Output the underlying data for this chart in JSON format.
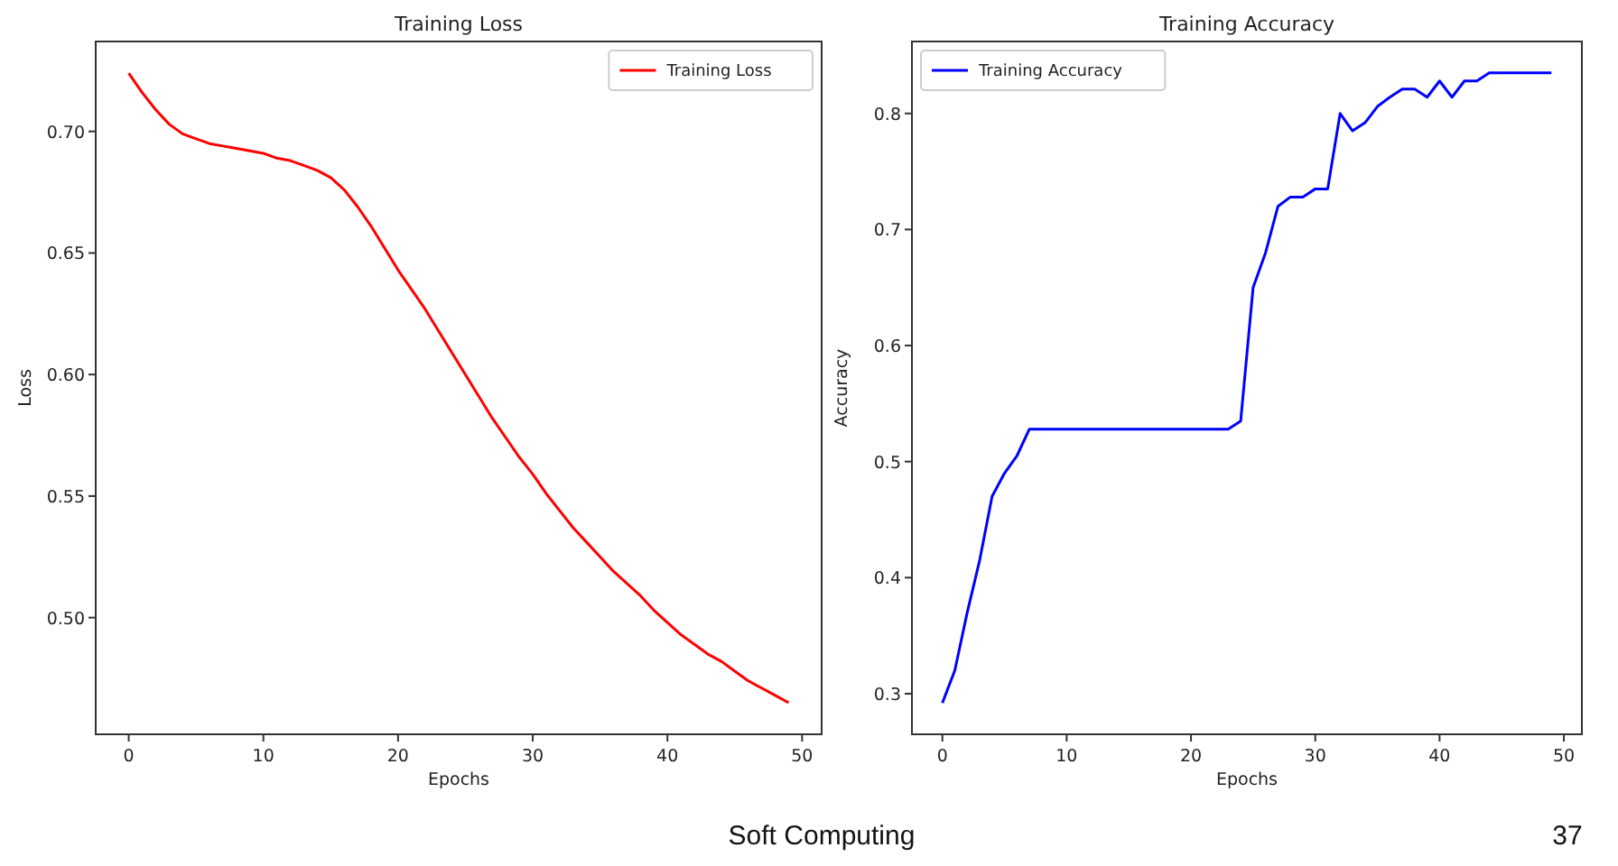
{
  "chart_data": [
    {
      "type": "line",
      "title": "Training Loss",
      "xlabel": "Epochs",
      "ylabel": "Loss",
      "x": [
        0,
        1,
        2,
        3,
        4,
        5,
        6,
        7,
        8,
        9,
        10,
        11,
        12,
        13,
        14,
        15,
        16,
        17,
        18,
        19,
        20,
        21,
        22,
        23,
        24,
        25,
        26,
        27,
        28,
        29,
        30,
        31,
        32,
        33,
        34,
        35,
        36,
        37,
        38,
        39,
        40,
        41,
        42,
        43,
        44,
        45,
        46,
        47,
        48,
        49
      ],
      "series": [
        {
          "name": "Training Loss",
          "color": "#ff0000",
          "values": [
            0.724,
            0.716,
            0.709,
            0.703,
            0.699,
            0.697,
            0.695,
            0.694,
            0.693,
            0.692,
            0.691,
            0.689,
            0.688,
            0.686,
            0.684,
            0.681,
            0.676,
            0.669,
            0.661,
            0.652,
            0.643,
            0.635,
            0.627,
            0.618,
            0.609,
            0.6,
            0.591,
            0.582,
            0.574,
            0.566,
            0.559,
            0.551,
            0.544,
            0.537,
            0.531,
            0.525,
            0.519,
            0.514,
            0.509,
            0.503,
            0.498,
            0.493,
            0.489,
            0.485,
            0.482,
            0.478,
            0.474,
            0.471,
            0.468,
            0.465
          ]
        }
      ],
      "xlim": [
        -2.45,
        51.45
      ],
      "xticks": [
        0,
        10,
        20,
        30,
        40,
        50
      ],
      "ylim": [
        0.452,
        0.737
      ],
      "yticks": [
        {
          "value": 0.5,
          "label": "0.50"
        },
        {
          "value": 0.55,
          "label": "0.55"
        },
        {
          "value": 0.6,
          "label": "0.60"
        },
        {
          "value": 0.65,
          "label": "0.65"
        },
        {
          "value": 0.7,
          "label": "0.70"
        }
      ],
      "legend": "top right",
      "grid": false,
      "annotations": [
        "Soft Computing",
        "37"
      ]
    },
    {
      "type": "line",
      "title": "Training Accuracy",
      "xlabel": "Epochs",
      "ylabel": "Accuracy",
      "x": [
        0,
        1,
        2,
        3,
        4,
        5,
        6,
        7,
        8,
        9,
        10,
        11,
        12,
        13,
        14,
        15,
        16,
        17,
        18,
        19,
        20,
        21,
        22,
        23,
        24,
        25,
        26,
        27,
        28,
        29,
        30,
        31,
        32,
        33,
        34,
        35,
        36,
        37,
        38,
        39,
        40,
        41,
        42,
        43,
        44,
        45,
        46,
        47,
        48,
        49
      ],
      "series": [
        {
          "name": "Training Accuracy",
          "color": "#0000ff",
          "values": [
            0.292,
            0.32,
            0.37,
            0.415,
            0.47,
            0.49,
            0.505,
            0.528,
            0.528,
            0.528,
            0.528,
            0.528,
            0.528,
            0.528,
            0.528,
            0.528,
            0.528,
            0.528,
            0.528,
            0.528,
            0.528,
            0.528,
            0.528,
            0.528,
            0.535,
            0.65,
            0.68,
            0.72,
            0.728,
            0.728,
            0.735,
            0.735,
            0.8,
            0.785,
            0.792,
            0.806,
            0.814,
            0.821,
            0.821,
            0.814,
            0.828,
            0.814,
            0.828,
            0.828,
            0.835,
            0.835,
            0.835,
            0.835,
            0.835,
            0.835
          ]
        }
      ],
      "xlim": [
        -2.45,
        51.45
      ],
      "xticks": [
        0,
        10,
        20,
        30,
        40,
        50
      ],
      "ylim": [
        0.265,
        0.862
      ],
      "yticks": [
        0.3,
        0.4,
        0.5,
        0.6,
        0.7,
        0.8
      ],
      "legend": "top left",
      "grid": false
    }
  ]
}
